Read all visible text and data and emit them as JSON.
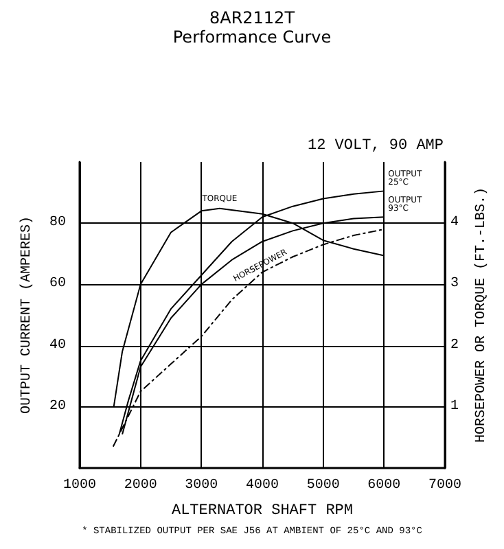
{
  "chart_data": {
    "type": "line",
    "title": "8AR2112T",
    "subtitle": "Performance Curve",
    "xlabel": "ALTERNATOR SHAFT RPM",
    "ylabel": "OUTPUT CURRENT (AMPERES)",
    "y2label": "HORSEPOWER OR TORQUE (FT.-LBS.)",
    "annotations": [
      "12 VOLT, 90 AMP",
      "* STABILIZED OUTPUT PER SAE J56 AT AMBIENT OF 25°C AND 93°C"
    ],
    "xlim": [
      1000,
      7000
    ],
    "xticks": [
      1000,
      2000,
      3000,
      4000,
      5000,
      6000,
      7000
    ],
    "ylim": [
      0,
      100
    ],
    "yticks": [
      20,
      40,
      60,
      80
    ],
    "y2lim": [
      0,
      5
    ],
    "y2ticks": [
      1,
      2,
      3,
      4
    ],
    "grid": true,
    "legend": false,
    "marker": "none",
    "series": [
      {
        "name": "TORQUE",
        "color": "#000000",
        "axis": "y2",
        "x": [
          1560,
          1700,
          2000,
          2500,
          3000,
          3300,
          4000,
          4500,
          5000,
          5500,
          6000
        ],
        "values": [
          1.0,
          1.9,
          3.0,
          3.85,
          4.2,
          4.24,
          4.15,
          4.0,
          3.72,
          3.58,
          3.47
        ]
      },
      {
        "name": "HORSEPOWER",
        "color": "#000000",
        "axis": "y2",
        "line_style": "dashed",
        "x": [
          1550,
          2000,
          2500,
          3000,
          3500,
          4000,
          4500,
          5000,
          5500,
          6000
        ],
        "values": [
          0.35,
          1.25,
          1.7,
          2.15,
          2.75,
          3.2,
          3.45,
          3.65,
          3.8,
          3.9
        ]
      },
      {
        "name": "OUTPUT 25°C",
        "color": "#000000",
        "x": [
          1650,
          1800,
          2000,
          2500,
          3000,
          3500,
          4000,
          4500,
          5000,
          5500,
          6000
        ],
        "values": [
          11,
          22,
          35,
          52,
          63,
          74,
          82,
          85.5,
          88,
          89.5,
          90.5
        ]
      },
      {
        "name": "OUTPUT 93°C",
        "color": "#000000",
        "x": [
          1700,
          1850,
          2000,
          2500,
          3000,
          3500,
          4000,
          4500,
          5000,
          5500,
          6000
        ],
        "values": [
          11,
          22,
          33,
          49,
          60,
          68,
          74,
          77.5,
          80,
          81.5,
          82
        ]
      }
    ]
  }
}
